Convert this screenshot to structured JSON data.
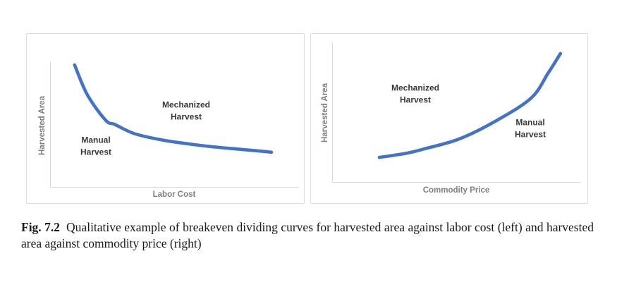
{
  "figure": {
    "panels": [
      {
        "id": "labor-cost",
        "ylabel": "Harvested Area",
        "xlabel": "Labor Cost",
        "region_upper": "Mechanized\nHarvest",
        "region_lower": "Manual\nHarvest"
      },
      {
        "id": "commodity-price",
        "ylabel": "Harvested Area",
        "xlabel": "Commodity Price",
        "region_upper": "Mechanized\nHarvest",
        "region_lower": "Manual\nHarvest"
      }
    ],
    "caption": {
      "label": "Fig. 7.2",
      "text": "Qualitative example of breakeven dividing curves for harvested area against labor cost (left) and harvested area against commodity price (right)"
    }
  },
  "colors": {
    "curve": "#4472C4",
    "axis_line": "#D9D9D9",
    "panel_border": "#DCDCDC",
    "axis_title_text": "#7F7F7F",
    "region_label_text": "#383838",
    "caption_text": "#1A1A1A"
  },
  "chart_data": [
    {
      "type": "line",
      "title": "",
      "xlabel": "Labor Cost",
      "ylabel": "Harvested Area",
      "qualitative": true,
      "grid": false,
      "legend": "none",
      "axis_ticks": "none",
      "xlim": [
        0,
        1
      ],
      "ylim": [
        0,
        1
      ],
      "annotations": [
        {
          "text": "Mechanized Harvest",
          "region": "above curve (upper right)"
        },
        {
          "text": "Manual Harvest",
          "region": "below curve (lower left)"
        }
      ],
      "series": [
        {
          "name": "breakeven-dividing-curve",
          "shape": "decreasing hyperbola-like",
          "x": [
            0.099,
            0.15,
            0.224,
            0.261,
            0.34,
            0.452,
            0.56,
            0.642,
            0.75,
            0.83,
            0.892
          ],
          "y": [
            0.977,
            0.74,
            0.537,
            0.503,
            0.43,
            0.379,
            0.348,
            0.328,
            0.308,
            0.294,
            0.282
          ]
        }
      ]
    },
    {
      "type": "line",
      "title": "",
      "xlabel": "Commodity Price",
      "ylabel": "Harvested Area",
      "qualitative": true,
      "grid": false,
      "legend": "none",
      "axis_ticks": "none",
      "xlim": [
        0,
        1
      ],
      "ylim": [
        0,
        1
      ],
      "annotations": [
        {
          "text": "Mechanized Harvest",
          "region": "above curve (upper left)"
        },
        {
          "text": "Manual Harvest",
          "region": "below curve (lower right)"
        }
      ],
      "series": [
        {
          "name": "breakeven-dividing-curve",
          "shape": "increasing convex (exponential-like)",
          "x": [
            0.19,
            0.3,
            0.37,
            0.51,
            0.65,
            0.8,
            0.87,
            0.92
          ],
          "y": [
            0.18,
            0.21,
            0.24,
            0.31,
            0.43,
            0.6,
            0.78,
            0.92
          ]
        }
      ]
    }
  ]
}
